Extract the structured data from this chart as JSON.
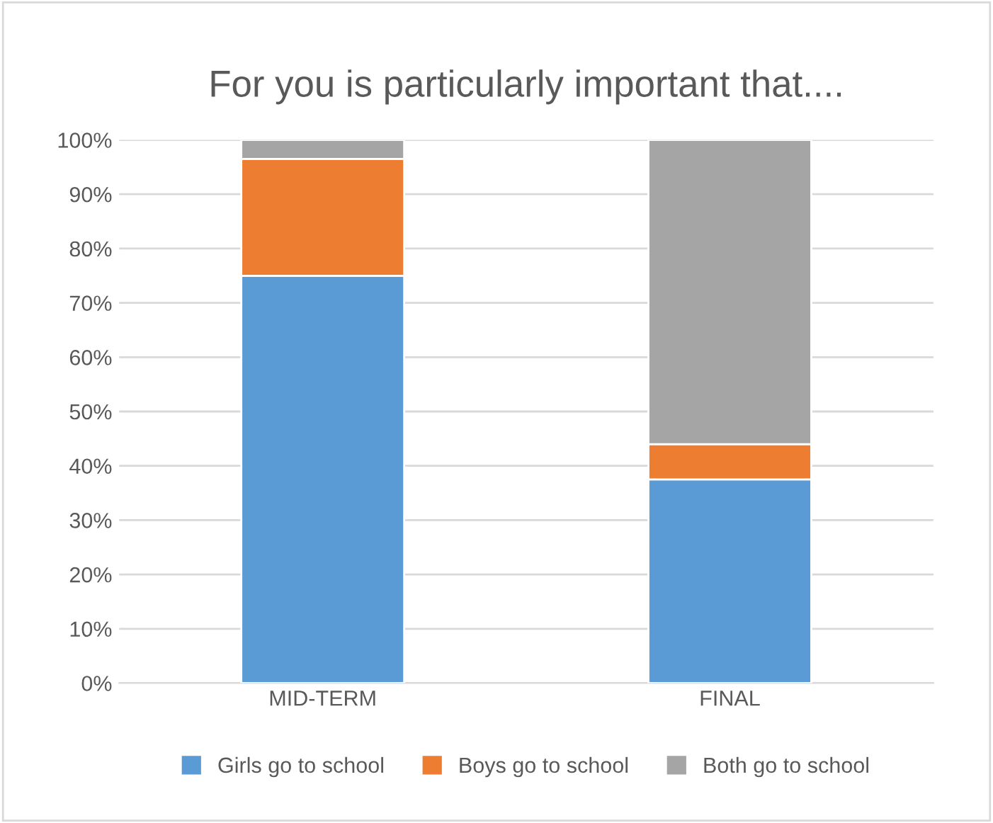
{
  "chart_data": {
    "type": "bar",
    "stacked": true,
    "title": "For you is particularly important that....",
    "categories": [
      "MID-TERM",
      "FINAL"
    ],
    "series": [
      {
        "name": "Girls go to school",
        "color": "#5b9bd5",
        "values": [
          75,
          37.5
        ]
      },
      {
        "name": "Boys go to school",
        "color": "#ed7d31",
        "values": [
          21.5,
          6.5
        ]
      },
      {
        "name": "Both go to school",
        "color": "#a5a5a5",
        "values": [
          3.5,
          56
        ]
      }
    ],
    "ylim": [
      0,
      100
    ],
    "yticks": [
      {
        "value": 0,
        "label": "0%"
      },
      {
        "value": 10,
        "label": "10%"
      },
      {
        "value": 20,
        "label": "20%"
      },
      {
        "value": 30,
        "label": "30%"
      },
      {
        "value": 40,
        "label": "40%"
      },
      {
        "value": 50,
        "label": "50%"
      },
      {
        "value": 60,
        "label": "60%"
      },
      {
        "value": 70,
        "label": "70%"
      },
      {
        "value": 80,
        "label": "80%"
      },
      {
        "value": 90,
        "label": "90%"
      },
      {
        "value": 100,
        "label": "100%"
      }
    ],
    "grid": "y",
    "legend": "bottom"
  }
}
